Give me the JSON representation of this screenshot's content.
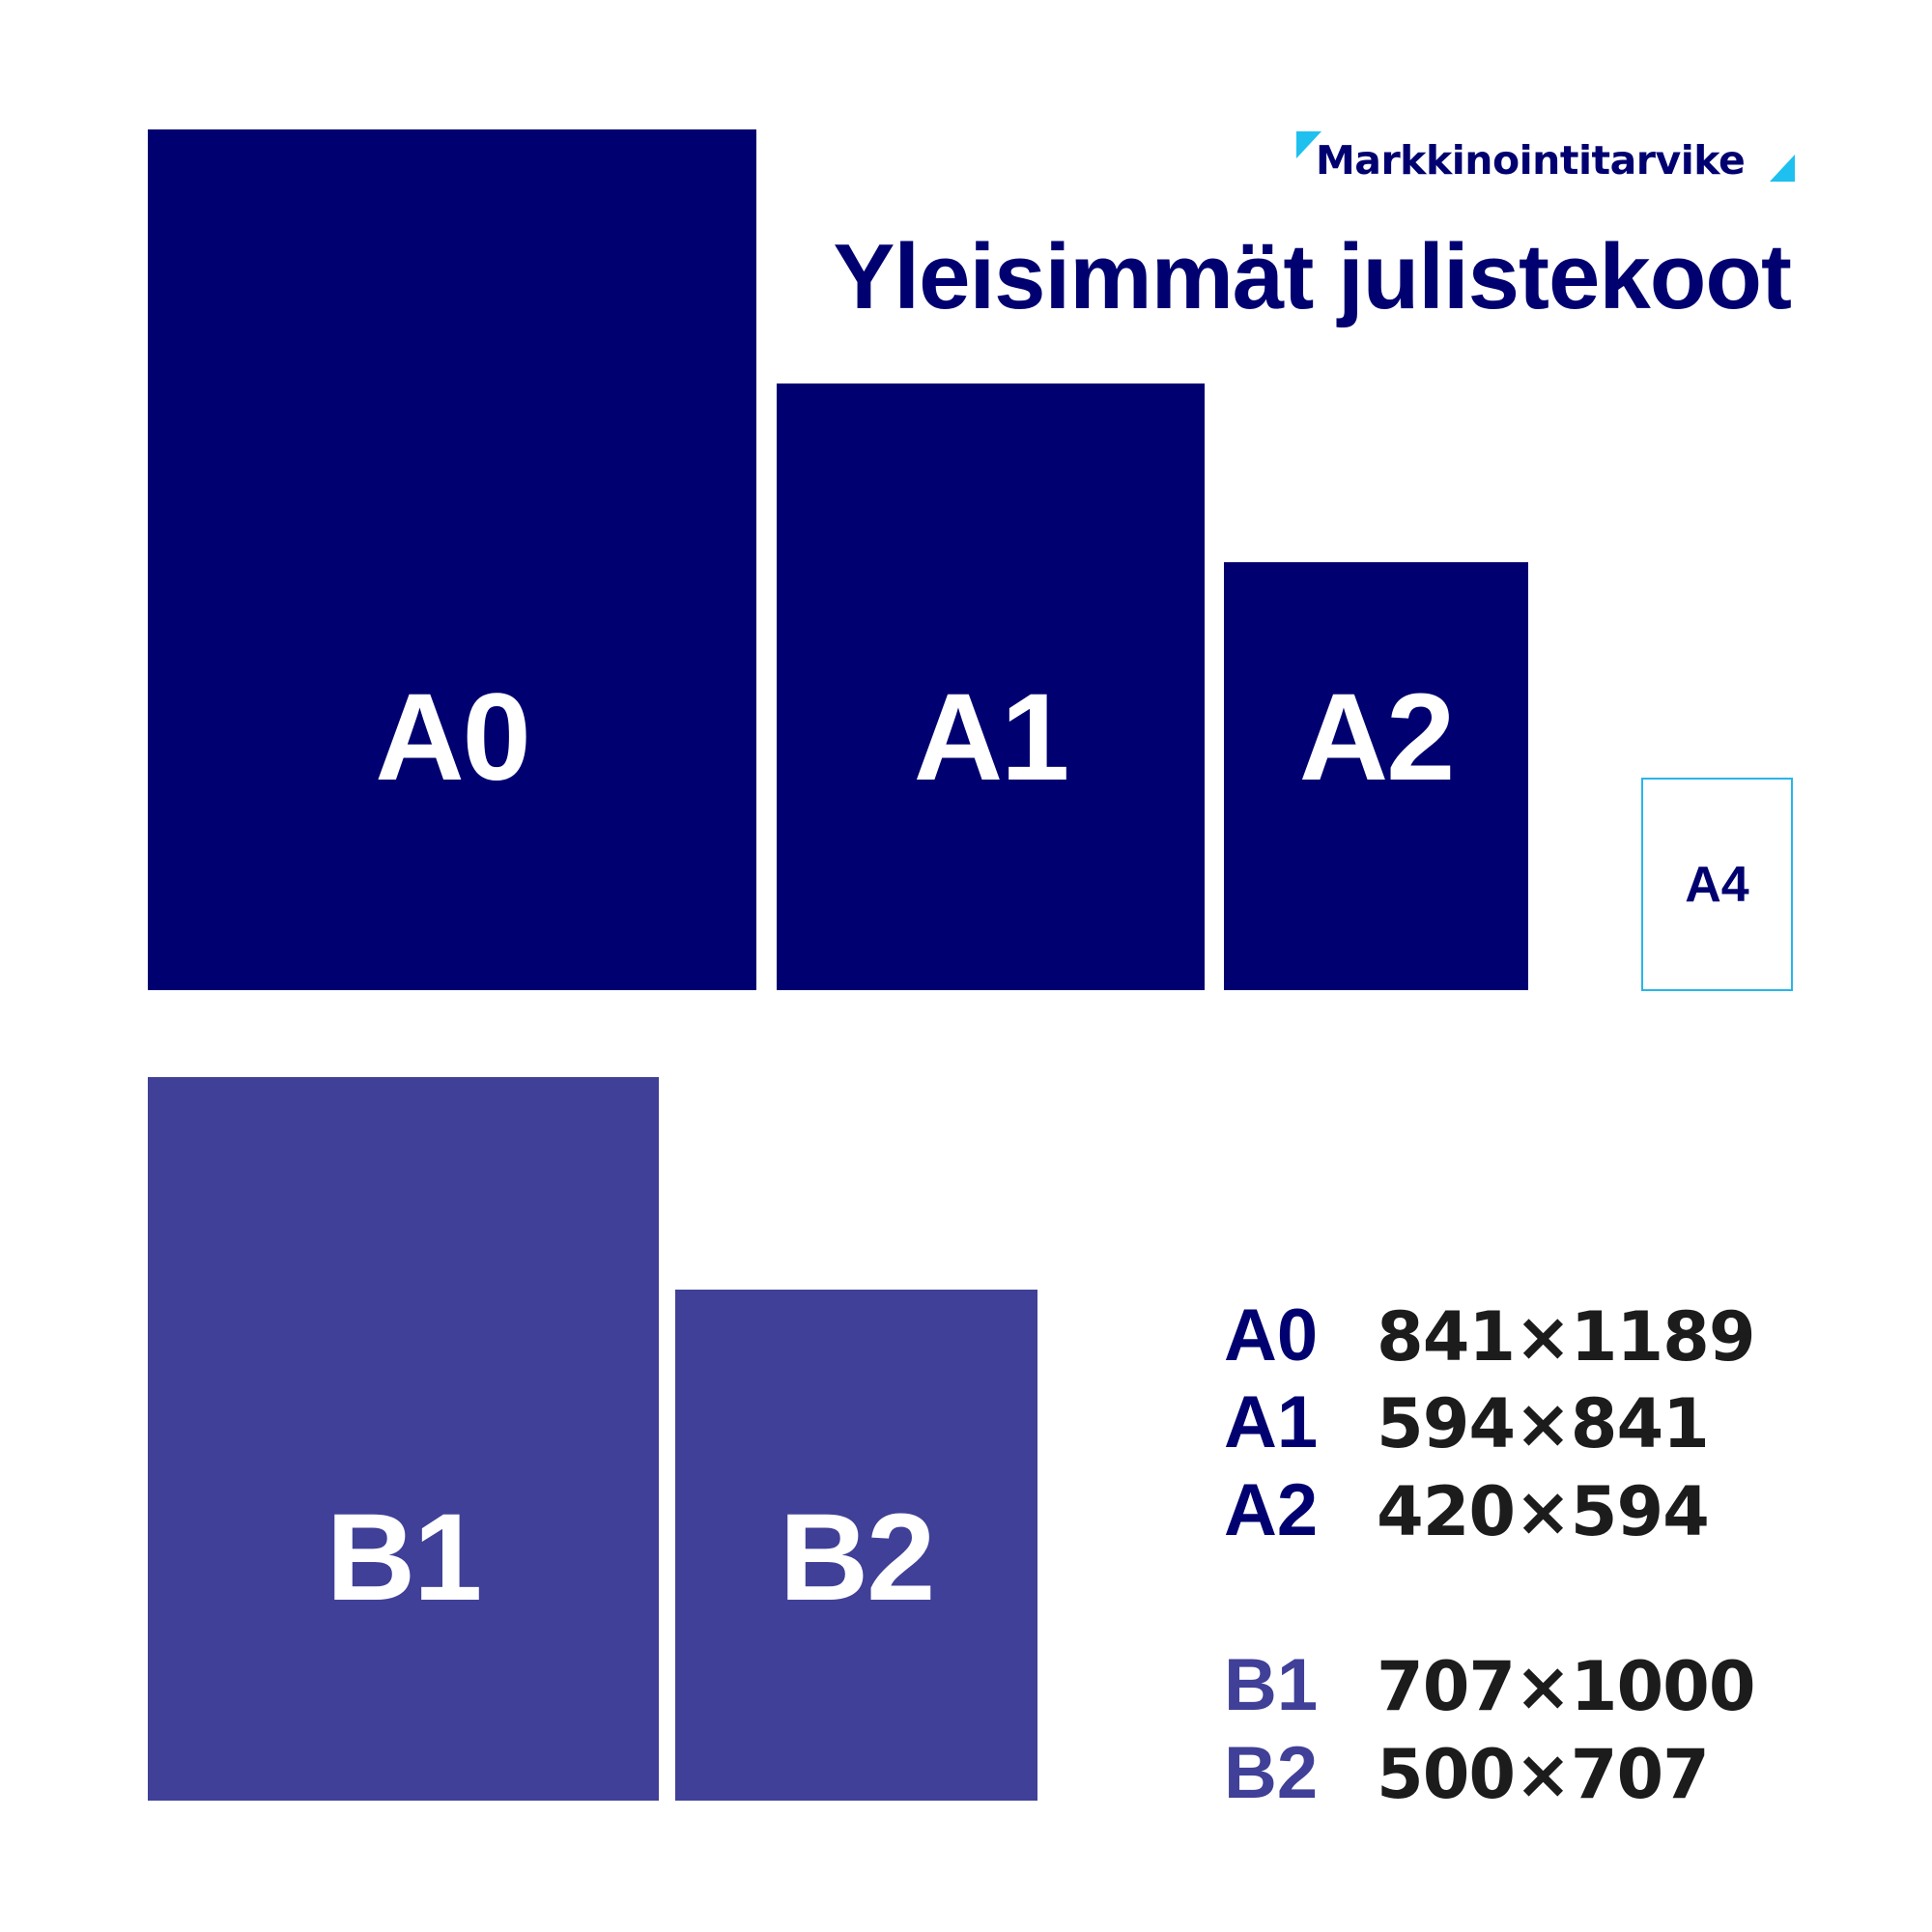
{
  "logo": {
    "text": "Markkinointitarvike",
    "accent_color": "#1ec0f0"
  },
  "title": "Yleisimmät julistekoot",
  "colors": {
    "a_series": "#000070",
    "b_series": "#404098",
    "a4_outline": "#29b6e8"
  },
  "sheets": {
    "A0": "A0",
    "A1": "A1",
    "A2": "A2",
    "A4": "A4",
    "B1": "B1",
    "B2": "B2"
  },
  "sizes": [
    {
      "name": "A0",
      "dims": "841×1189"
    },
    {
      "name": "A1",
      "dims": "594×841"
    },
    {
      "name": "A2",
      "dims": "420×594"
    },
    {
      "name": "B1",
      "dims": "707×1000"
    },
    {
      "name": "B2",
      "dims": "500×707"
    }
  ]
}
